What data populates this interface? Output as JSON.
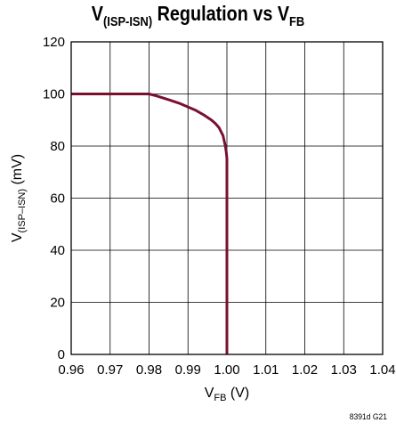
{
  "chart_data": {
    "type": "line",
    "title": {
      "main_v": "V",
      "main_sub": "(ISP-ISN)",
      "main_rest": " Regulation vs V",
      "end_sub": "FB"
    },
    "xlabel": {
      "base": "V",
      "sub": "FB",
      "rest": " (V)"
    },
    "ylabel": {
      "base": "V",
      "sub": "(ISP–ISN)",
      "rest": " (mV)"
    },
    "xlim": [
      0.96,
      1.04
    ],
    "ylim": [
      0,
      120
    ],
    "x_ticks": [
      "0.96",
      "0.97",
      "0.98",
      "0.99",
      "1.00",
      "1.01",
      "1.02",
      "1.03",
      "1.04"
    ],
    "y_ticks": [
      "0",
      "20",
      "40",
      "60",
      "80",
      "100",
      "120"
    ],
    "x_tick_values": [
      0.96,
      0.97,
      0.98,
      0.99,
      1.0,
      1.01,
      1.02,
      1.03,
      1.04
    ],
    "y_tick_values": [
      0,
      20,
      40,
      60,
      80,
      100,
      120
    ],
    "grid": true,
    "line_color": "#7a1030",
    "series": [
      {
        "x": [
          0.96,
          0.975,
          0.98,
          0.982,
          0.985,
          0.988,
          0.99,
          0.992,
          0.994,
          0.996,
          0.997,
          0.998,
          0.9985,
          0.999,
          0.9993,
          0.9996,
          0.9998,
          0.99995,
          1.0,
          1.0,
          1.0
        ],
        "y": [
          100,
          100,
          100,
          99.2,
          97.8,
          96.3,
          95.0,
          93.7,
          92.0,
          90.0,
          88.7,
          87.0,
          85.5,
          84.0,
          82.0,
          80.0,
          78.0,
          76.0,
          75.0,
          40.0,
          0.0
        ]
      }
    ]
  },
  "code_label": "8391d G21"
}
